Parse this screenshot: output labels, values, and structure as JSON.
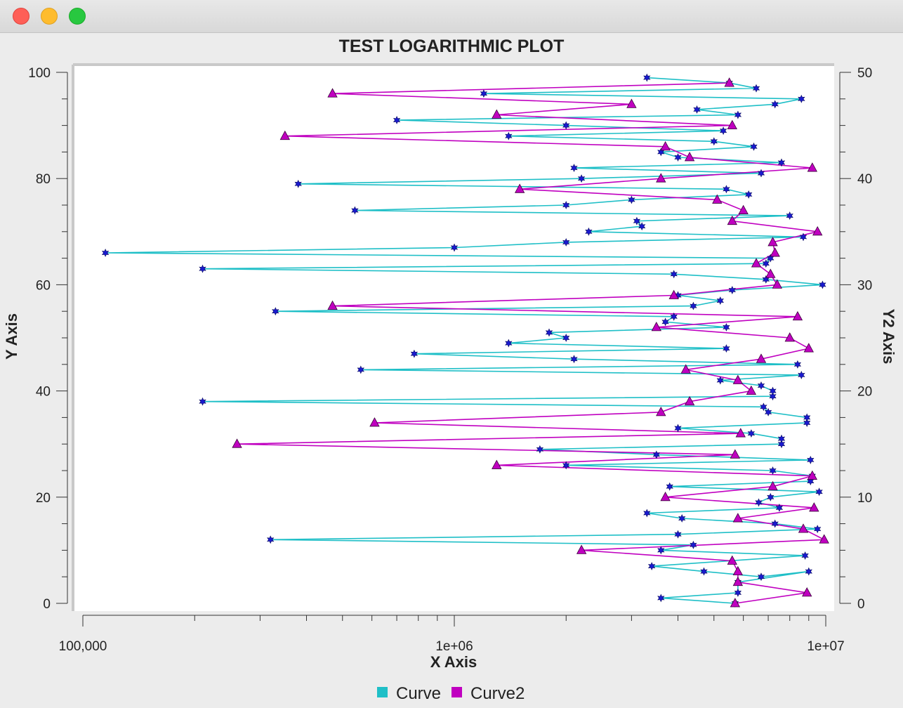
{
  "window": {
    "buttons": [
      "close",
      "minimize",
      "zoom"
    ]
  },
  "chart_data": {
    "type": "line",
    "title": "TEST LOGARITHMIC PLOT",
    "xlabel": "X Axis",
    "ylabel": "Y Axis",
    "y2label": "Y2 Axis",
    "xscale": "log",
    "xlim": [
      100000,
      10000000
    ],
    "ylim": [
      0,
      100
    ],
    "y2lim": [
      0,
      50
    ],
    "x_tick_labels": [
      "100,000",
      "1e+06",
      "1e+07"
    ],
    "y_tick_labels": [
      "0",
      "20",
      "40",
      "60",
      "80",
      "100"
    ],
    "y2_tick_labels": [
      "0",
      "10",
      "20",
      "30",
      "40",
      "50"
    ],
    "grid": false,
    "legend": "bottom-center",
    "colors": {
      "Curve": "#1fbfc7",
      "Curve2": "#c000c0",
      "marker": "#1a1ad0"
    },
    "series": [
      {
        "name": "Curve",
        "axis": "y",
        "marker": "star",
        "points": [
          [
            5700000,
            0
          ],
          [
            3600000,
            1
          ],
          [
            5800000,
            2
          ],
          [
            5800000,
            4
          ],
          [
            9000000,
            6
          ],
          [
            6700000,
            5
          ],
          [
            4700000,
            6
          ],
          [
            3400000,
            7
          ],
          [
            8800000,
            9
          ],
          [
            3600000,
            10
          ],
          [
            4400000,
            11
          ],
          [
            320000,
            12
          ],
          [
            4000000,
            13
          ],
          [
            9500000,
            14
          ],
          [
            7300000,
            15
          ],
          [
            4100000,
            16
          ],
          [
            3300000,
            17
          ],
          [
            7500000,
            18
          ],
          [
            6600000,
            19
          ],
          [
            7100000,
            20
          ],
          [
            9600000,
            21
          ],
          [
            3800000,
            22
          ],
          [
            9100000,
            23
          ],
          [
            9200000,
            24
          ],
          [
            7200000,
            25
          ],
          [
            2000000,
            26
          ],
          [
            9100000,
            27
          ],
          [
            3500000,
            28
          ],
          [
            1700000,
            29
          ],
          [
            7600000,
            30
          ],
          [
            7600000,
            31
          ],
          [
            6300000,
            32
          ],
          [
            4000000,
            33
          ],
          [
            8900000,
            34
          ],
          [
            8900000,
            35
          ],
          [
            7000000,
            36
          ],
          [
            6800000,
            37
          ],
          [
            210000,
            38
          ],
          [
            7200000,
            39
          ],
          [
            7200000,
            40
          ],
          [
            6700000,
            41
          ],
          [
            5200000,
            42
          ],
          [
            8600000,
            43
          ],
          [
            560000,
            44
          ],
          [
            8400000,
            45
          ],
          [
            2100000,
            46
          ],
          [
            780000,
            47
          ],
          [
            5400000,
            48
          ],
          [
            1400000,
            49
          ],
          [
            2000000,
            50
          ],
          [
            1800000,
            51
          ],
          [
            5400000,
            52
          ],
          [
            3700000,
            53
          ],
          [
            3900000,
            54
          ],
          [
            330000,
            55
          ],
          [
            4400000,
            56
          ],
          [
            5200000,
            57
          ],
          [
            4000000,
            58
          ],
          [
            5600000,
            59
          ],
          [
            9800000,
            60
          ],
          [
            6900000,
            61
          ],
          [
            3900000,
            62
          ],
          [
            210000,
            63
          ],
          [
            6900000,
            64
          ],
          [
            7100000,
            65
          ],
          [
            115000,
            66
          ],
          [
            1000000,
            67
          ],
          [
            2000000,
            68
          ],
          [
            8700000,
            69
          ],
          [
            2300000,
            70
          ],
          [
            3200000,
            71
          ],
          [
            3100000,
            72
          ],
          [
            8000000,
            73
          ],
          [
            540000,
            74
          ],
          [
            2000000,
            75
          ],
          [
            3000000,
            76
          ],
          [
            6200000,
            77
          ],
          [
            5400000,
            78
          ],
          [
            380000,
            79
          ],
          [
            2200000,
            80
          ],
          [
            6700000,
            81
          ],
          [
            2100000,
            82
          ],
          [
            7600000,
            83
          ],
          [
            4000000,
            84
          ],
          [
            3600000,
            85
          ],
          [
            6400000,
            86
          ],
          [
            5000000,
            87
          ],
          [
            1400000,
            88
          ],
          [
            5300000,
            89
          ],
          [
            2000000,
            90
          ],
          [
            700000,
            91
          ],
          [
            5800000,
            92
          ],
          [
            4500000,
            93
          ],
          [
            7300000,
            94
          ],
          [
            8600000,
            95
          ],
          [
            1200000,
            96
          ],
          [
            6500000,
            97
          ],
          [
            5500000,
            98
          ],
          [
            3300000,
            99
          ]
        ]
      },
      {
        "name": "Curve2",
        "axis": "y2",
        "marker": "triangle",
        "points": [
          [
            5700000,
            0
          ],
          [
            8900000,
            1
          ],
          [
            5800000,
            2
          ],
          [
            5800000,
            3
          ],
          [
            5600000,
            4
          ],
          [
            2200000,
            5
          ],
          [
            9900000,
            6
          ],
          [
            8700000,
            7
          ],
          [
            5800000,
            8
          ],
          [
            9300000,
            9
          ],
          [
            3700000,
            10
          ],
          [
            7200000,
            11
          ],
          [
            9200000,
            12
          ],
          [
            1300000,
            13
          ],
          [
            5700000,
            14
          ],
          [
            260000,
            15
          ],
          [
            5900000,
            16
          ],
          [
            610000,
            17
          ],
          [
            3600000,
            18
          ],
          [
            4300000,
            19
          ],
          [
            6300000,
            20
          ],
          [
            5800000,
            21
          ],
          [
            4200000,
            22
          ],
          [
            6700000,
            23
          ],
          [
            9000000,
            24
          ],
          [
            8000000,
            25
          ],
          [
            3500000,
            26
          ],
          [
            8400000,
            27
          ],
          [
            470000,
            28
          ],
          [
            3900000,
            29
          ],
          [
            7400000,
            30
          ],
          [
            7100000,
            31
          ],
          [
            6500000,
            32
          ],
          [
            7300000,
            33
          ],
          [
            7200000,
            34
          ],
          [
            9500000,
            35
          ],
          [
            5600000,
            36
          ],
          [
            6000000,
            37
          ],
          [
            5100000,
            38
          ],
          [
            1500000,
            39
          ],
          [
            3600000,
            40
          ],
          [
            9200000,
            41
          ],
          [
            4300000,
            42
          ],
          [
            3700000,
            43
          ],
          [
            350000,
            44
          ],
          [
            5600000,
            45
          ],
          [
            1300000,
            46
          ],
          [
            3000000,
            47
          ],
          [
            470000,
            48
          ],
          [
            5500000,
            49
          ]
        ]
      }
    ]
  }
}
